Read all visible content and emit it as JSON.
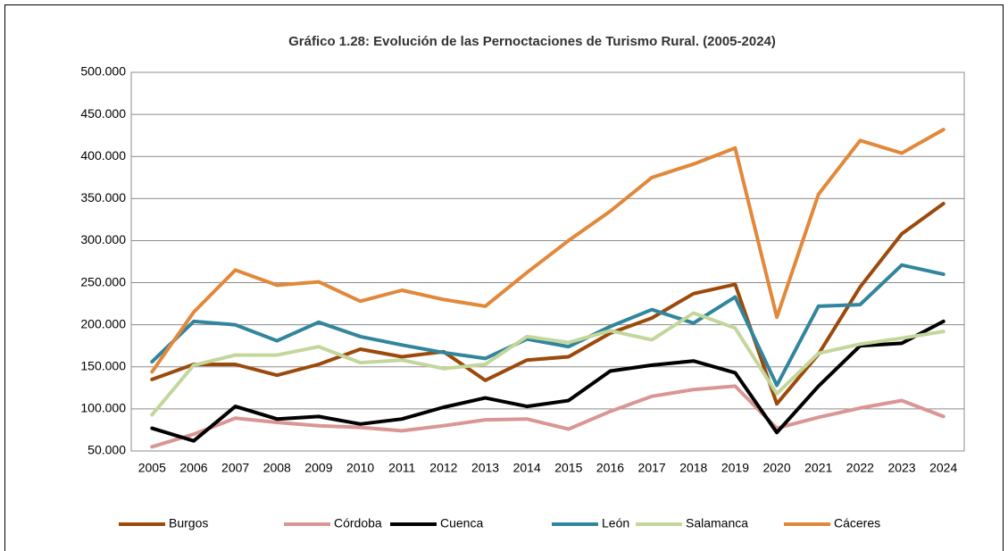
{
  "chart_data": {
    "type": "line",
    "title": "Gráfico 1.28: Evolución de las Pernoctaciones de Turismo Rural. (2005-2024)",
    "categories": [
      "2005",
      "2006",
      "2007",
      "2008",
      "2009",
      "2010",
      "2011",
      "2012",
      "2013",
      "2014",
      "2015",
      "2016",
      "2017",
      "2018",
      "2019",
      "2020",
      "2021",
      "2022",
      "2023",
      "2024"
    ],
    "series": [
      {
        "name": "Burgos",
        "color": "#9c4a0c",
        "values": [
          135000,
          153000,
          153000,
          140000,
          153000,
          171000,
          162000,
          168000,
          134000,
          158000,
          162000,
          190000,
          208000,
          237000,
          248000,
          106000,
          165000,
          245000,
          308000,
          344000
        ]
      },
      {
        "name": "Córdoba",
        "color": "#d99694",
        "values": [
          55000,
          70000,
          89000,
          84000,
          80000,
          78000,
          74000,
          80000,
          87000,
          88000,
          76000,
          97000,
          115000,
          123000,
          127000,
          77000,
          90000,
          101000,
          110000,
          91000
        ]
      },
      {
        "name": "Cuenca",
        "color": "#000000",
        "values": [
          77000,
          62000,
          103000,
          88000,
          91000,
          82000,
          88000,
          102000,
          113000,
          103000,
          110000,
          145000,
          152000,
          157000,
          143000,
          72000,
          127000,
          175000,
          178000,
          204000
        ]
      },
      {
        "name": "León",
        "color": "#31859c",
        "values": [
          156000,
          204000,
          200000,
          181000,
          203000,
          186000,
          176000,
          167000,
          160000,
          183000,
          174000,
          198000,
          218000,
          202000,
          233000,
          128000,
          222000,
          224000,
          271000,
          260000
        ]
      },
      {
        "name": "Salamanca",
        "color": "#c3d69b",
        "values": [
          93000,
          152000,
          164000,
          164000,
          174000,
          155000,
          158000,
          148000,
          153000,
          186000,
          179000,
          193000,
          182000,
          214000,
          196000,
          118000,
          166000,
          177000,
          184000,
          192000
        ]
      },
      {
        "name": "Cáceres",
        "color": "#e2883a",
        "values": [
          144000,
          215000,
          265000,
          247000,
          251000,
          228000,
          241000,
          230000,
          222000,
          262000,
          300000,
          335000,
          375000,
          391000,
          410000,
          209000,
          355000,
          419000,
          404000,
          432000
        ]
      }
    ],
    "ylim": [
      50000,
      500000
    ],
    "yticks": [
      {
        "value": 50000,
        "label": "50.000"
      },
      {
        "value": 100000,
        "label": "100.000"
      },
      {
        "value": 150000,
        "label": "150.000"
      },
      {
        "value": 200000,
        "label": "200.000"
      },
      {
        "value": 250000,
        "label": "250.000"
      },
      {
        "value": 300000,
        "label": "300.000"
      },
      {
        "value": 350000,
        "label": "350.000"
      },
      {
        "value": 400000,
        "label": "400.000"
      },
      {
        "value": 450000,
        "label": "450.000"
      },
      {
        "value": 500000,
        "label": "500.000"
      }
    ],
    "grid": true,
    "legend": "bottom"
  }
}
